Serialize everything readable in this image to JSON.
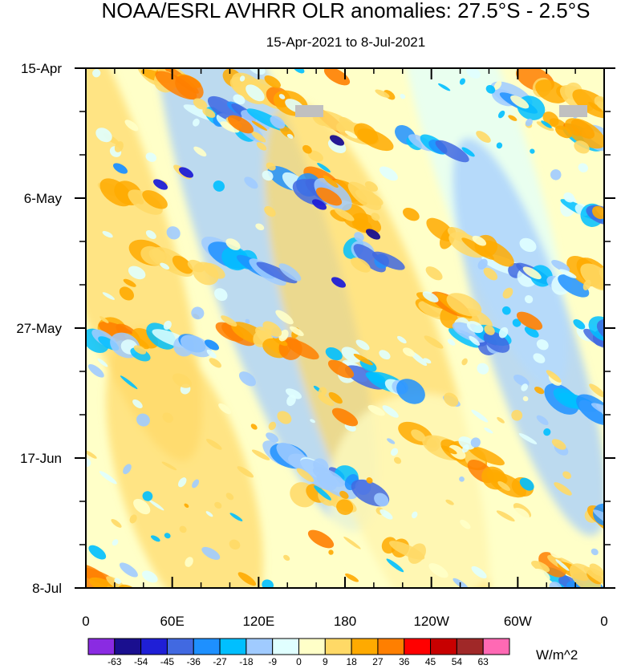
{
  "chart_data": {
    "type": "heatmap",
    "title": "NOAA/ESRL AVHRR OLR anomalies: 27.5°S - 2.5°S",
    "subtitle": "15-Apr-2021 to 8-Jul-2021",
    "x_tick_labels": [
      "0",
      "60E",
      "120E",
      "180",
      "120W",
      "60W",
      "0"
    ],
    "x_range": [
      0,
      360
    ],
    "y_tick_labels": [
      "15-Apr",
      "6-May",
      "27-May",
      "17-Jun",
      "8-Jul"
    ],
    "y_range_days": [
      0,
      84
    ],
    "colorbar": {
      "tick_labels": [
        "-63",
        "-54",
        "-45",
        "-36",
        "-27",
        "-18",
        "-9",
        "0",
        "9",
        "18",
        "27",
        "36",
        "45",
        "54",
        "63"
      ],
      "colors": [
        "#8a2be2",
        "#1a0f8f",
        "#1f1fd6",
        "#4169e1",
        "#1e90ff",
        "#00bfff",
        "#a0cbff",
        "#e0ffff",
        "#ffffc8",
        "#ffd966",
        "#ffaa00",
        "#ff7f00",
        "#ff0000",
        "#c80000",
        "#a02828",
        "#ff69b4"
      ],
      "units": "W/m^2"
    },
    "missing_color": "#c0c0c0"
  }
}
